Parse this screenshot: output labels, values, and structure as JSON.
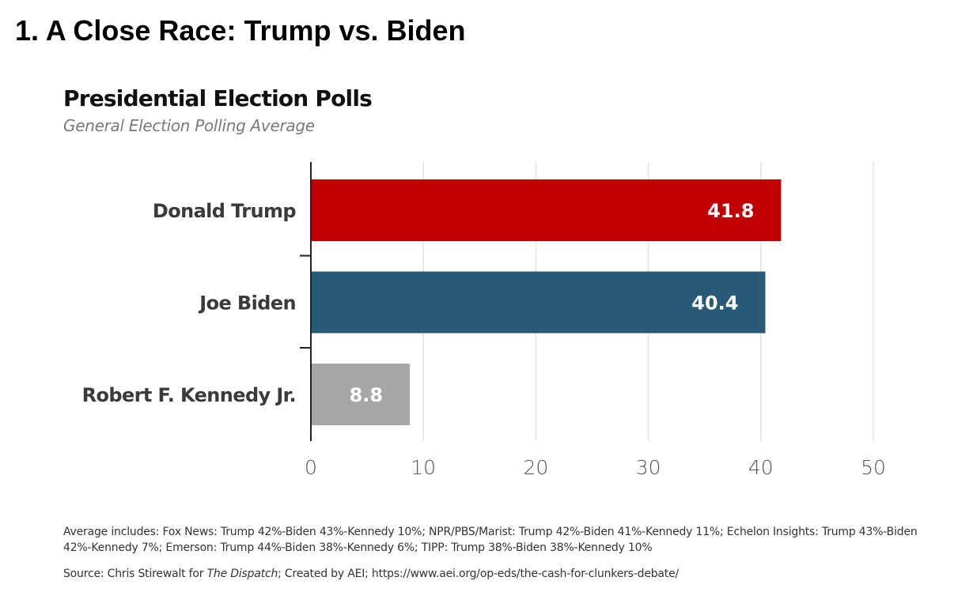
{
  "page": {
    "heading": "1. A Close Race: Trump vs. Biden"
  },
  "chart_data": {
    "type": "bar",
    "orientation": "horizontal",
    "title": "Presidential Election Polls",
    "subtitle": "General Election Polling Average",
    "categories": [
      "Donald Trump",
      "Joe Biden",
      "Robert F. Kennedy Jr."
    ],
    "values": [
      41.8,
      40.4,
      8.8
    ],
    "value_labels": [
      "41.8",
      "40.4",
      "8.8"
    ],
    "colors": [
      "#c00000",
      "#285a78",
      "#a6a6a6"
    ],
    "xlim": [
      0,
      50
    ],
    "xticks": [
      0,
      10,
      20,
      30,
      40,
      50
    ],
    "xtick_labels": [
      "0",
      "10",
      "20",
      "30",
      "40",
      "50"
    ],
    "xlabel": "",
    "ylabel": "",
    "grid": "vertical"
  },
  "footer": {
    "note": "Average includes: Fox News: Trump 42%-Biden 43%-Kennedy 10%; NPR/PBS/Marist: Trump 42%-Biden 41%-Kennedy 11%; Echelon Insights: Trump 43%-Biden 42%-Kennedy 7%; Emerson: Trump 44%-Biden 38%-Kennedy 6%; TIPP: Trump 38%-Biden 38%-Kennedy 10%",
    "source_prefix": "Source: Chris Stirewalt for ",
    "source_publication": "The Dispatch",
    "source_suffix": "; Created by AEI; https://www.aei.org/op-eds/the-cash-for-clunkers-debate/"
  }
}
